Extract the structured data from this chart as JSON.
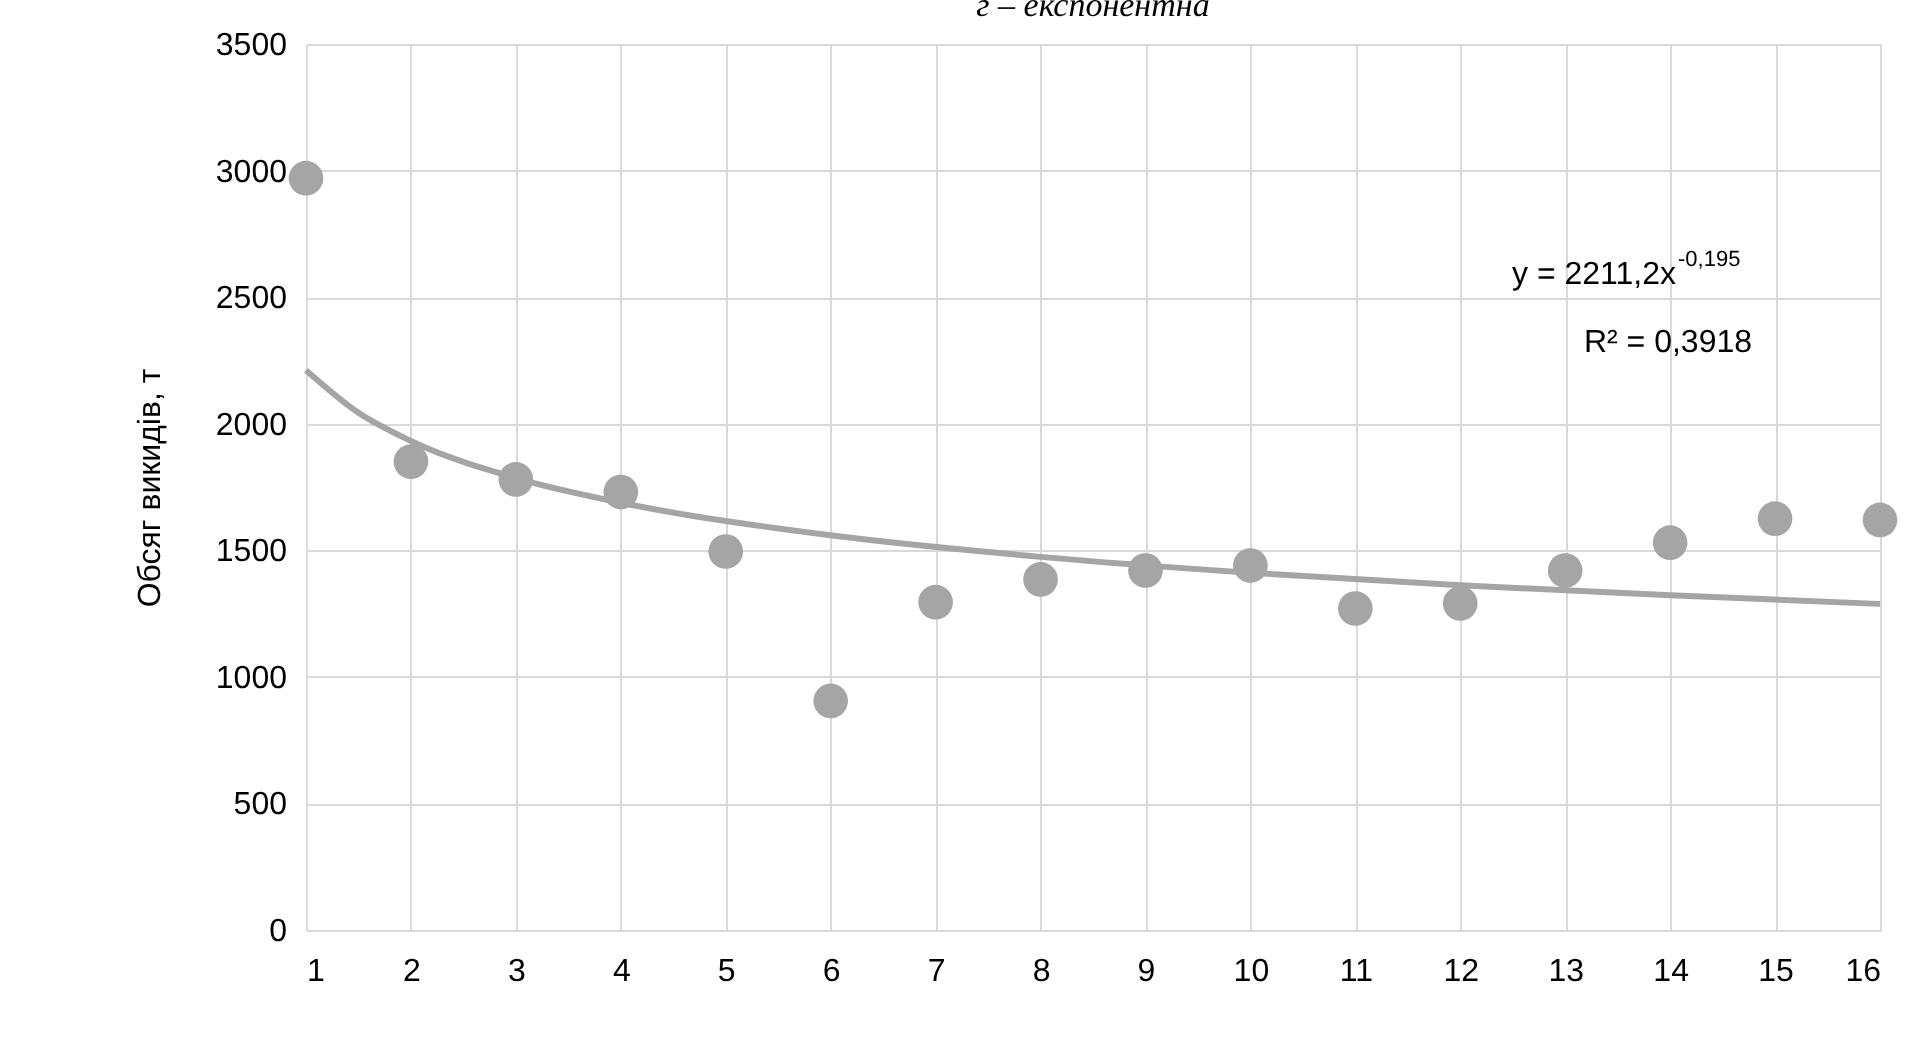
{
  "chart_data": {
    "type": "scatter",
    "title": "г – експонентна",
    "ylabel": "Обсяг викидів, т",
    "x": [
      1,
      2,
      3,
      4,
      5,
      6,
      7,
      8,
      9,
      10,
      11,
      12,
      13,
      14,
      15,
      16
    ],
    "series": [
      {
        "color": "#a5a5a5",
        "marker": "circle",
        "values": [
          2970,
          1850,
          1780,
          1730,
          1495,
          905,
          1295,
          1385,
          1420,
          1440,
          1270,
          1290,
          1420,
          1530,
          1625,
          1620
        ]
      },
      {
        "type": "line",
        "color": "#a5a5a5",
        "marker": "none",
        "line_style": "solid",
        "x": [
          1,
          1.5,
          2,
          3,
          4,
          6,
          8,
          10,
          12,
          14,
          16
        ],
        "values": [
          2211,
          2043,
          1932,
          1785,
          1688,
          1559,
          1474,
          1411,
          1362,
          1322,
          1288
        ]
      }
    ],
    "xlim": [
      1,
      16
    ],
    "xticks": [
      1,
      2,
      3,
      4,
      5,
      6,
      7,
      8,
      9,
      10,
      11,
      12,
      13,
      14,
      15,
      16
    ],
    "ylim": [
      0,
      3500
    ],
    "yticks": [
      0,
      500,
      1000,
      1500,
      2000,
      2500,
      3000,
      3500
    ],
    "grid": true,
    "annotations": [
      "y = 2211,2x$^{-0,195}$",
      "R² = 0,3918"
    ]
  }
}
